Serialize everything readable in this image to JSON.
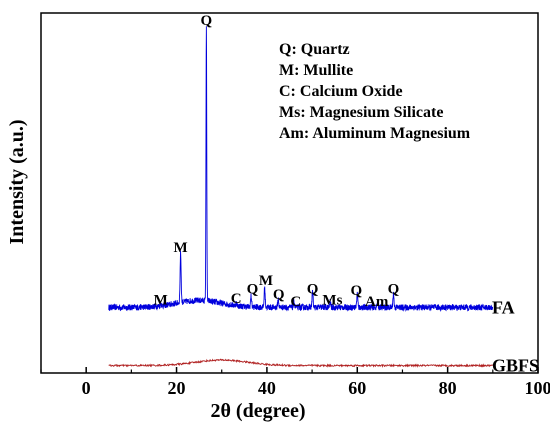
{
  "chart_data": {
    "type": "line",
    "title": "",
    "xlabel": "2θ (degree)",
    "ylabel": "Intensity (a.u.)",
    "xlim": [
      -10,
      100
    ],
    "x_ticks": [
      0,
      20,
      40,
      60,
      80,
      100
    ],
    "y_tick_labels_shown": false,
    "grid": false,
    "legend_position": "top-right",
    "legend": [
      {
        "abbr": "Q",
        "text": "Q: Quartz"
      },
      {
        "abbr": "M",
        "text": "M: Mullite"
      },
      {
        "abbr": "C",
        "text": "C: Calcium Oxide"
      },
      {
        "abbr": "Ms",
        "text": "Ms: Magnesium Silicate"
      },
      {
        "abbr": "Am",
        "text": "Am: Aluminum Magnesium"
      }
    ],
    "series": [
      {
        "name": "FA",
        "color": "#0000dd",
        "x_range": [
          5,
          90
        ],
        "baseline": 0.06,
        "hump": {
          "center": 25,
          "width": 7,
          "height": 0.025
        },
        "peaks": [
          {
            "x": 16.5,
            "height": 0.01
          },
          {
            "x": 20.9,
            "height": 0.18
          },
          {
            "x": 26.6,
            "height": 1.0
          },
          {
            "x": 33.2,
            "height": 0.01
          },
          {
            "x": 36.5,
            "height": 0.04
          },
          {
            "x": 39.5,
            "height": 0.07
          },
          {
            "x": 42.5,
            "height": 0.03
          },
          {
            "x": 46.0,
            "height": 0.02
          },
          {
            "x": 50.1,
            "height": 0.06
          },
          {
            "x": 54.0,
            "height": 0.02
          },
          {
            "x": 60.0,
            "height": 0.05
          },
          {
            "x": 64.5,
            "height": 0.02
          },
          {
            "x": 68.0,
            "height": 0.05
          }
        ]
      },
      {
        "name": "GBFS",
        "color": "#b02020",
        "x_range": [
          5,
          90
        ],
        "baseline": -0.15,
        "hump": {
          "center": 30,
          "width": 8,
          "height": 0.02
        },
        "peaks": []
      }
    ],
    "peak_labels": [
      {
        "text": "M",
        "x": 16.5,
        "y": 0.07
      },
      {
        "text": "M",
        "x": 20.9,
        "y": 0.26
      },
      {
        "text": "Q",
        "x": 26.6,
        "y": 1.08
      },
      {
        "text": "C",
        "x": 33.2,
        "y": 0.075
      },
      {
        "text": "Q",
        "x": 36.8,
        "y": 0.11
      },
      {
        "text": "M",
        "x": 39.8,
        "y": 0.14
      },
      {
        "text": "Q",
        "x": 42.6,
        "y": 0.09
      },
      {
        "text": "C",
        "x": 46.4,
        "y": 0.065
      },
      {
        "text": "Q",
        "x": 50.1,
        "y": 0.11
      },
      {
        "text": "Ms",
        "x": 54.5,
        "y": 0.07
      },
      {
        "text": "Q",
        "x": 59.8,
        "y": 0.105
      },
      {
        "text": "Am",
        "x": 64.3,
        "y": 0.065
      },
      {
        "text": "Q",
        "x": 68.0,
        "y": 0.11
      }
    ]
  }
}
